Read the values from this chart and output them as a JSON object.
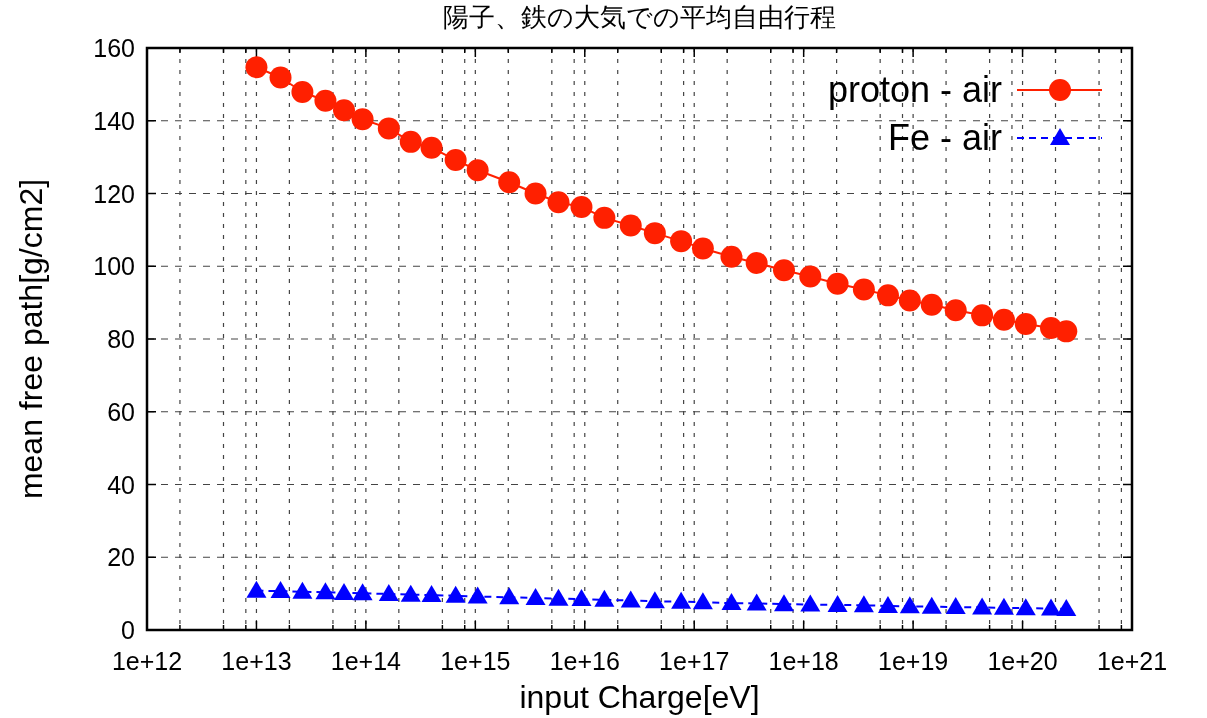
{
  "chart_data": {
    "type": "line",
    "title": "陽子、鉄の大気での平均自由行程",
    "xlabel": "input Charge[eV]",
    "ylabel": "mean free path[g/cm2]",
    "log": "x",
    "grid": true,
    "legend": "top right",
    "xlim": [
      1000000000000.0,
      1e+21
    ],
    "ylim": [
      0,
      160
    ],
    "yticks": [
      0,
      20,
      40,
      60,
      80,
      100,
      120,
      140,
      160
    ],
    "xticks": [
      {
        "value": 1000000000000.0,
        "label": "1e+12"
      },
      {
        "value": 2000000000000.0,
        "label": null
      },
      {
        "value": 5000000000000.0,
        "label": null
      },
      {
        "value": 8000000000000.0,
        "label": null
      },
      {
        "value": 10000000000000.0,
        "label": "1e+13"
      },
      {
        "value": 20000000000000.0,
        "label": null
      },
      {
        "value": 50000000000000.0,
        "label": null
      },
      {
        "value": 80000000000000.0,
        "label": null
      },
      {
        "value": 100000000000000.0,
        "label": "1e+14"
      },
      {
        "value": 200000000000000.0,
        "label": null
      },
      {
        "value": 500000000000000.0,
        "label": null
      },
      {
        "value": 800000000000000.0,
        "label": null
      },
      {
        "value": 1000000000000000.0,
        "label": "1e+15"
      },
      {
        "value": 2000000000000000.0,
        "label": null
      },
      {
        "value": 5000000000000000.0,
        "label": null
      },
      {
        "value": 8000000000000000.0,
        "label": null
      },
      {
        "value": 1e+16,
        "label": "1e+16"
      },
      {
        "value": 2e+16,
        "label": null
      },
      {
        "value": 5e+16,
        "label": null
      },
      {
        "value": 8e+16,
        "label": null
      },
      {
        "value": 1e+17,
        "label": "1e+17"
      },
      {
        "value": 2e+17,
        "label": null
      },
      {
        "value": 5e+17,
        "label": null
      },
      {
        "value": 8e+17,
        "label": null
      },
      {
        "value": 1e+18,
        "label": "1e+18"
      },
      {
        "value": 2e+18,
        "label": null
      },
      {
        "value": 5e+18,
        "label": null
      },
      {
        "value": 8e+18,
        "label": null
      },
      {
        "value": 1e+19,
        "label": "1e+19"
      },
      {
        "value": 2e+19,
        "label": null
      },
      {
        "value": 5e+19,
        "label": null
      },
      {
        "value": 8e+19,
        "label": null
      },
      {
        "value": 1e+20,
        "label": "1e+20"
      },
      {
        "value": 2e+20,
        "label": null
      },
      {
        "value": 5e+20,
        "label": null
      },
      {
        "value": 8e+20,
        "label": null
      },
      {
        "value": 1e+21,
        "label": "1e+21"
      }
    ],
    "x": [
      10000000000000.0,
      16600000000000.0,
      26300000000000.0,
      42700000000000.0,
      63100000000000.0,
      93300000000000.0,
      162000000000000.0,
      257000000000000.0,
      398000000000000.0,
      661000000000000.0,
      1050000000000000.0,
      2040000000000000.0,
      3550000000000000.0,
      5750000000000000.0,
      9330000000000000.0,
      1.51e+16,
      2.63e+16,
      4.37e+16,
      7.59e+16,
      1.2e+17,
      2.19e+17,
      3.72e+17,
      6.61e+17,
      1.15e+18,
      2.04e+18,
      3.55e+18,
      5.89e+18,
      9.33e+18,
      1.48e+19,
      2.45e+19,
      4.27e+19,
      6.76e+19,
      1.07e+20,
      1.82e+20,
      2.51e+20
    ],
    "series": [
      {
        "name": "proton - air",
        "color": "#ff2000",
        "marker": "circle",
        "line_style": "solid",
        "values": [
          154.7,
          151.9,
          147.9,
          145.5,
          142.9,
          140.4,
          137.9,
          134.2,
          132.6,
          129.2,
          126.4,
          123.1,
          120.0,
          117.6,
          116.3,
          113.3,
          111.2,
          109.1,
          106.9,
          104.9,
          102.6,
          100.9,
          98.9,
          97.2,
          95.2,
          93.6,
          92.0,
          90.6,
          89.4,
          87.9,
          86.5,
          85.3,
          84.1,
          83.0,
          82.1
        ]
      },
      {
        "name": "Fe - air",
        "color": "#0000ff",
        "marker": "triangle",
        "line_style": "dashed",
        "values": [
          10.8,
          10.7,
          10.5,
          10.4,
          10.2,
          10.1,
          9.9,
          9.7,
          9.6,
          9.4,
          9.2,
          9.0,
          8.8,
          8.6,
          8.5,
          8.3,
          8.1,
          7.9,
          7.8,
          7.6,
          7.4,
          7.3,
          7.1,
          7.0,
          6.9,
          6.8,
          6.6,
          6.5,
          6.4,
          6.3,
          6.2,
          6.1,
          6.0,
          5.9,
          5.8
        ]
      }
    ]
  }
}
